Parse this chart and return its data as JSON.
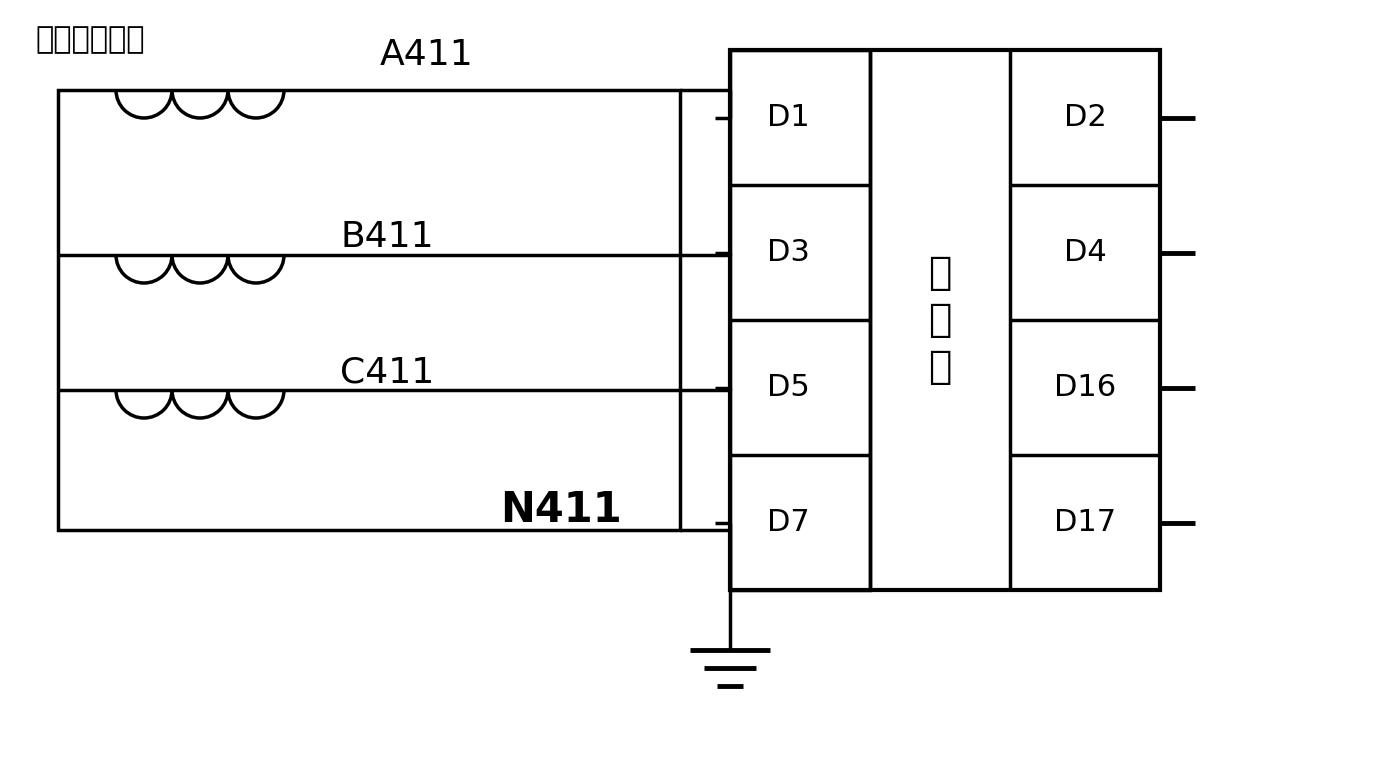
{
  "bg_color": "#ffffff",
  "line_color": "#000000",
  "text_color": "#000000",
  "label_top": "电流二次绕组",
  "label_A": "A411",
  "label_B": "B411",
  "label_C": "C411",
  "label_N": "N411",
  "label_baohu": "保\n护\n屏",
  "left_panel_labels": [
    "D1",
    "D3",
    "D5",
    "D7"
  ],
  "right_panel_labels": [
    "D2",
    "D4",
    "D16",
    "D17"
  ],
  "fig_width": 13.78,
  "fig_height": 7.84,
  "dpi": 100
}
